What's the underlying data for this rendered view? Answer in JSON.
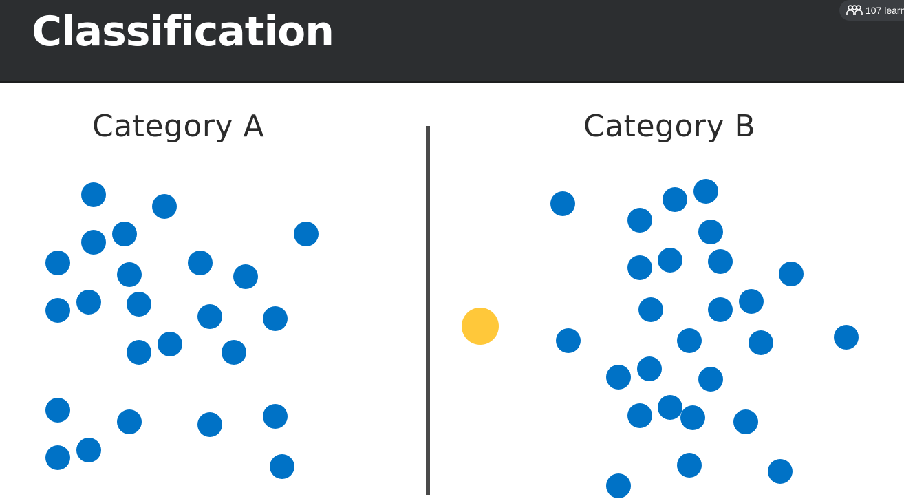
{
  "slide": {
    "title": "Classification",
    "learners_count": "107 learn",
    "category_a_label": "Category A",
    "category_b_label": "Category B"
  },
  "colors": {
    "header_bg": "#2c2e30",
    "dot_blue": "#0072c6",
    "dot_yellow": "#ffc83a",
    "divider": "#4a4a4a"
  },
  "icons": {
    "learners": "people-icon"
  }
}
